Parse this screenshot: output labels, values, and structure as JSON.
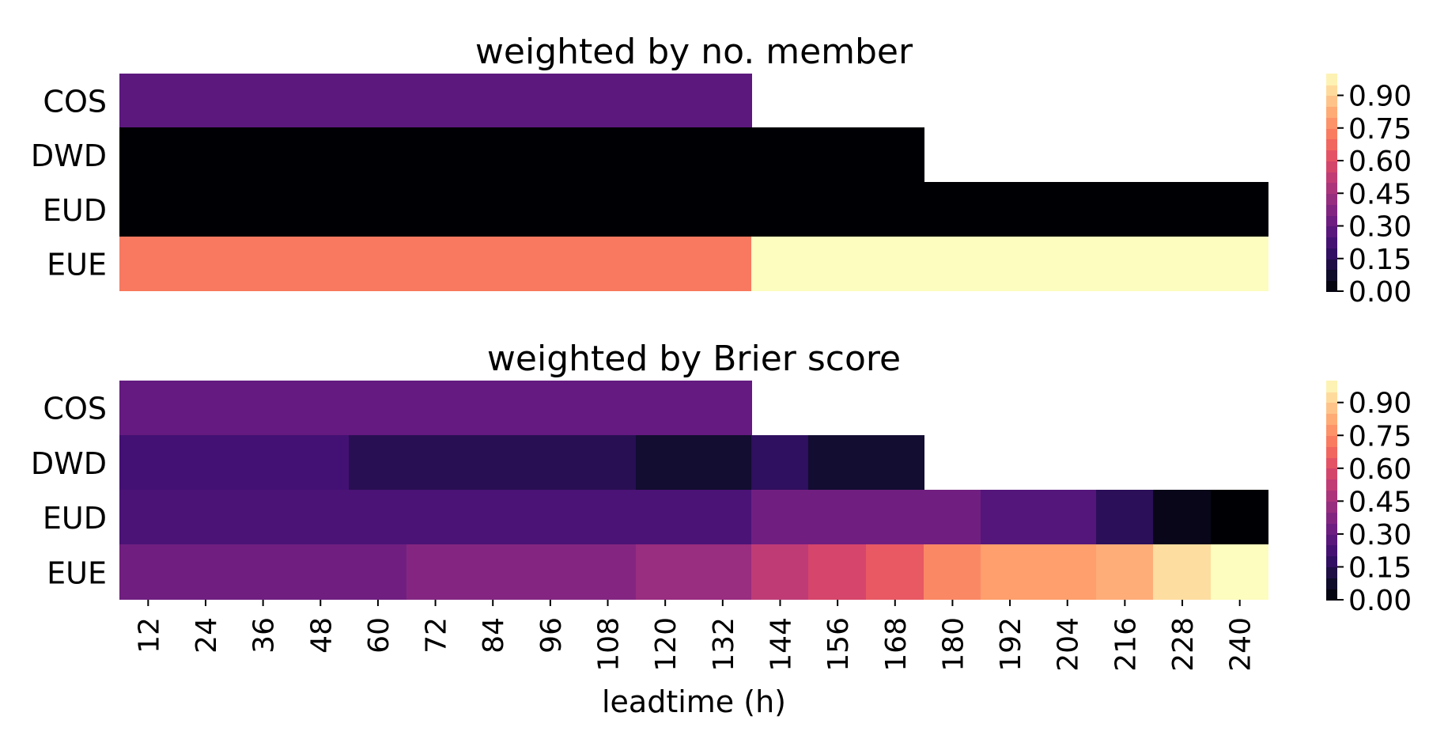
{
  "chart_data": [
    {
      "type": "heatmap",
      "title": "weighted by no. member",
      "xlabel": "",
      "ylabel": "",
      "rows": [
        "COS",
        "DWD",
        "EUD",
        "EUE"
      ],
      "columns": [
        12,
        24,
        36,
        48,
        60,
        72,
        84,
        96,
        108,
        120,
        132,
        144,
        156,
        168,
        180,
        192,
        204,
        216,
        228,
        240
      ],
      "values": [
        [
          0.28,
          0.28,
          0.28,
          0.28,
          0.28,
          0.28,
          0.28,
          0.28,
          0.28,
          0.28,
          0.28,
          null,
          null,
          null,
          null,
          null,
          null,
          null,
          null,
          null
        ],
        [
          0.0,
          0.0,
          0.0,
          0.0,
          0.0,
          0.0,
          0.0,
          0.0,
          0.0,
          0.0,
          0.0,
          0.0,
          0.0,
          0.0,
          null,
          null,
          null,
          null,
          null,
          null
        ],
        [
          0.0,
          0.0,
          0.0,
          0.0,
          0.0,
          0.0,
          0.0,
          0.0,
          0.0,
          0.0,
          0.0,
          0.0,
          0.0,
          0.0,
          0.0,
          0.0,
          0.0,
          0.0,
          0.0,
          0.0
        ],
        [
          0.72,
          0.72,
          0.72,
          0.72,
          0.72,
          0.72,
          0.72,
          0.72,
          0.72,
          0.72,
          0.72,
          1.0,
          1.0,
          1.0,
          1.0,
          1.0,
          1.0,
          1.0,
          1.0,
          1.0
        ]
      ],
      "colorbar": {
        "colormap": "magma",
        "range": [
          0,
          1
        ],
        "ticks": [
          "0.00",
          "0.15",
          "0.30",
          "0.45",
          "0.60",
          "0.75",
          "0.90"
        ]
      }
    },
    {
      "type": "heatmap",
      "title": "weighted by Brier score",
      "xlabel": "leadtime (h)",
      "ylabel": "",
      "rows": [
        "COS",
        "DWD",
        "EUD",
        "EUE"
      ],
      "columns": [
        12,
        24,
        36,
        48,
        60,
        72,
        84,
        96,
        108,
        120,
        132,
        144,
        156,
        168,
        180,
        192,
        204,
        216,
        228,
        240
      ],
      "values": [
        [
          0.3,
          0.3,
          0.3,
          0.3,
          0.3,
          0.3,
          0.3,
          0.3,
          0.3,
          0.3,
          0.3,
          null,
          null,
          null,
          null,
          null,
          null,
          null,
          null,
          null
        ],
        [
          0.22,
          0.22,
          0.22,
          0.22,
          0.15,
          0.15,
          0.15,
          0.15,
          0.15,
          0.09,
          0.09,
          0.17,
          0.09,
          0.09,
          null,
          null,
          null,
          null,
          null,
          null
        ],
        [
          0.24,
          0.24,
          0.24,
          0.24,
          0.24,
          0.24,
          0.24,
          0.24,
          0.24,
          0.24,
          0.24,
          0.33,
          0.33,
          0.33,
          0.33,
          0.26,
          0.26,
          0.16,
          0.04,
          0.0
        ],
        [
          0.33,
          0.33,
          0.33,
          0.33,
          0.33,
          0.38,
          0.38,
          0.38,
          0.38,
          0.43,
          0.43,
          0.52,
          0.58,
          0.64,
          0.75,
          0.8,
          0.8,
          0.83,
          0.93,
          1.0
        ]
      ],
      "colorbar": {
        "colormap": "magma",
        "range": [
          0,
          1
        ],
        "ticks": [
          "0.00",
          "0.15",
          "0.30",
          "0.45",
          "0.60",
          "0.75",
          "0.90"
        ]
      }
    }
  ]
}
